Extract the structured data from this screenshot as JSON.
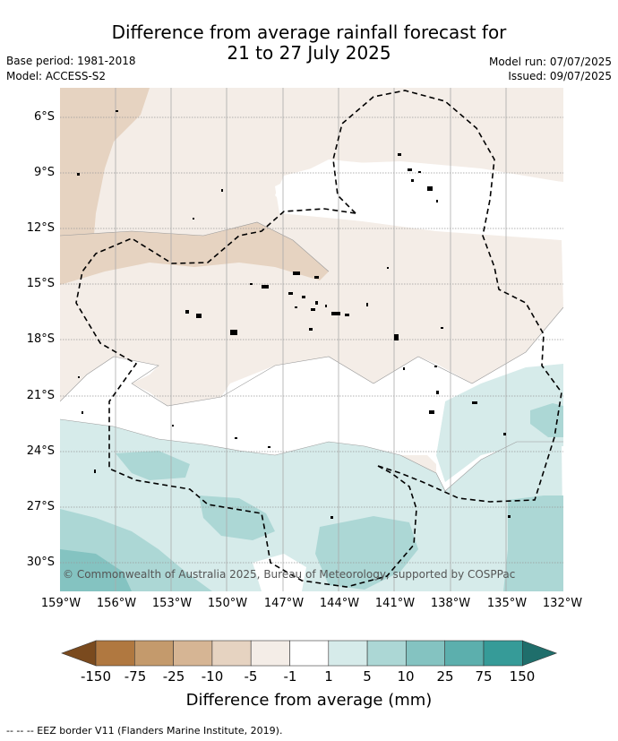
{
  "title_line1": "Difference from average rainfall forecast for",
  "title_line2": "21 to 27 July 2025",
  "base_period": "Base period: 1981-2018",
  "model": "Model: ACCESS-S2",
  "model_run": "Model run: 07/07/2025",
  "issued": "Issued: 09/07/2025",
  "copyright": "© Commonwealth of Australia 2025, Bureau of Meteorology, supported by COSPPac",
  "lat_labels": [
    "6°S",
    "9°S",
    "12°S",
    "15°S",
    "18°S",
    "21°S",
    "24°S",
    "27°S",
    "30°S"
  ],
  "lon_labels": [
    "159°W",
    "156°W",
    "153°W",
    "150°W",
    "147°W",
    "144°W",
    "141°W",
    "138°W",
    "135°W",
    "132°W"
  ],
  "colorbar": {
    "ticks": [
      "-150",
      "-75",
      "-25",
      "-10",
      "-5",
      "-1",
      "1",
      "5",
      "10",
      "25",
      "75",
      "150"
    ],
    "colors": [
      "#7a4a1e",
      "#b07840",
      "#c49a6c",
      "#d6b594",
      "#e6d3c1",
      "#f4ede7",
      "#ffffff",
      "#d6ebea",
      "#acd7d5",
      "#84c3c1",
      "#5cafad",
      "#369b98",
      "#1f6e6b"
    ],
    "label": "Difference from average (mm)"
  },
  "footnote": "--  --  -- EEZ border V11 (Flanders Marine Institute, 2019).",
  "map_colors": {
    "dry_light": "#f4ede7",
    "dry_mid": "#e6d3c1",
    "wet_light": "#d6ebea",
    "wet_mid": "#acd7d5",
    "wet_strong": "#84c3c1"
  }
}
